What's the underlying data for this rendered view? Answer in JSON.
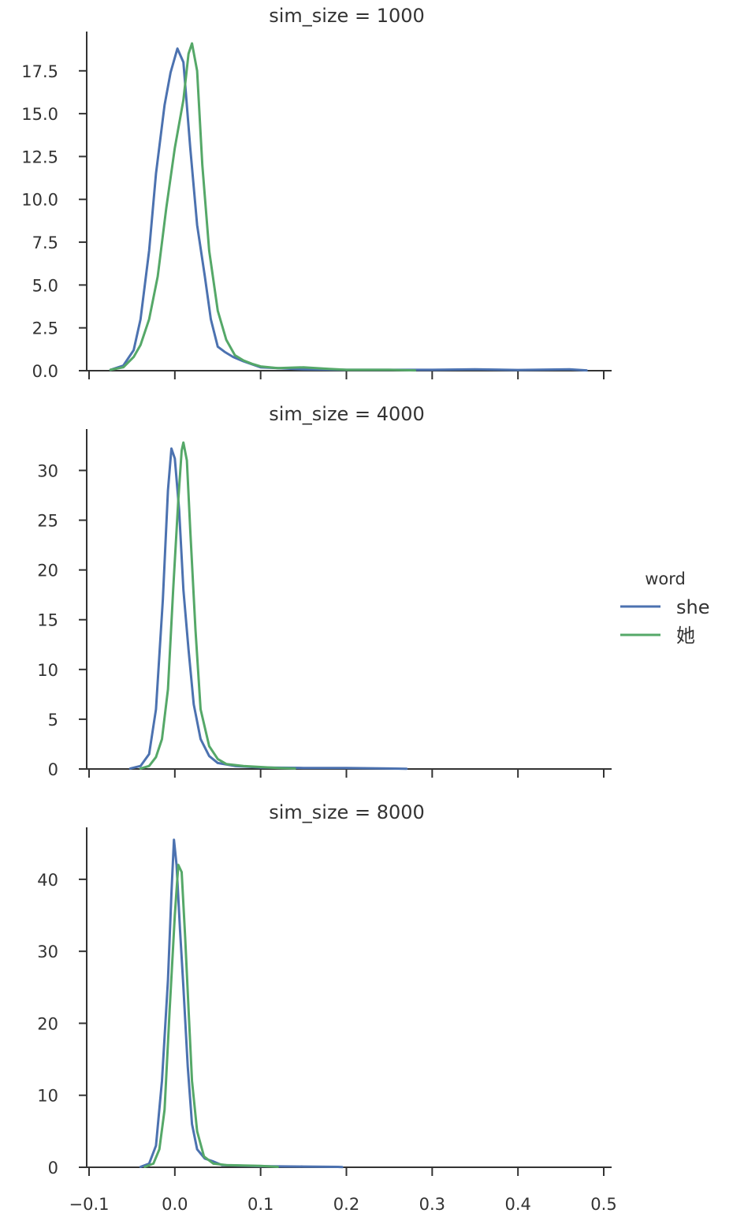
{
  "chart_data": {
    "type": "line",
    "x_ticks": [
      -0.1,
      0.0,
      0.1,
      0.2,
      0.3,
      0.4,
      0.5
    ],
    "x_tick_labels": [
      "−0.1",
      "0.0",
      "0.1",
      "0.2",
      "0.3",
      "0.4",
      "0.5"
    ],
    "xlim": [
      -0.1,
      0.5
    ],
    "legend": {
      "title": "word",
      "position": "right",
      "entries": [
        {
          "label": "she",
          "color": "#4c72b0"
        },
        {
          "label": "她",
          "color": "#55a868"
        }
      ]
    },
    "panels": [
      {
        "title": "sim_size = 1000",
        "ylim": [
          0,
          19.7
        ],
        "y_ticks": [
          0,
          2.5,
          5,
          7.5,
          10,
          12.5,
          15,
          17.5
        ],
        "y_tick_labels": [
          "0.0",
          "2.5",
          "5.0",
          "7.5",
          "10.0",
          "12.5",
          "15.0",
          "17.5"
        ],
        "series": [
          {
            "name": "she",
            "color": "#4c72b0",
            "points": [
              [
                -0.075,
                0.05
              ],
              [
                -0.06,
                0.3
              ],
              [
                -0.048,
                1.2
              ],
              [
                -0.04,
                3
              ],
              [
                -0.03,
                7
              ],
              [
                -0.022,
                11.5
              ],
              [
                -0.012,
                15.5
              ],
              [
                -0.005,
                17.4
              ],
              [
                0.003,
                18.8
              ],
              [
                0.01,
                18
              ],
              [
                0.018,
                13
              ],
              [
                0.026,
                8.5
              ],
              [
                0.035,
                5.5
              ],
              [
                0.042,
                3
              ],
              [
                0.05,
                1.4
              ],
              [
                0.058,
                1.1
              ],
              [
                0.068,
                0.8
              ],
              [
                0.08,
                0.55
              ],
              [
                0.1,
                0.2
              ],
              [
                0.12,
                0.15
              ],
              [
                0.15,
                0.08
              ],
              [
                0.2,
                0.05
              ],
              [
                0.3,
                0.05
              ],
              [
                0.35,
                0.08
              ],
              [
                0.4,
                0.04
              ],
              [
                0.46,
                0.08
              ],
              [
                0.48,
                0.02
              ]
            ]
          },
          {
            "name": "她",
            "color": "#55a868",
            "points": [
              [
                -0.075,
                0.05
              ],
              [
                -0.06,
                0.2
              ],
              [
                -0.048,
                0.8
              ],
              [
                -0.04,
                1.5
              ],
              [
                -0.03,
                3
              ],
              [
                -0.02,
                5.5
              ],
              [
                -0.01,
                9.5
              ],
              [
                0.0,
                13
              ],
              [
                0.01,
                15.8
              ],
              [
                0.016,
                18.5
              ],
              [
                0.02,
                19.1
              ],
              [
                0.026,
                17.5
              ],
              [
                0.032,
                12
              ],
              [
                0.04,
                7
              ],
              [
                0.05,
                3.5
              ],
              [
                0.06,
                1.8
              ],
              [
                0.07,
                0.9
              ],
              [
                0.08,
                0.6
              ],
              [
                0.09,
                0.4
              ],
              [
                0.1,
                0.25
              ],
              [
                0.12,
                0.15
              ],
              [
                0.15,
                0.2
              ],
              [
                0.18,
                0.1
              ],
              [
                0.2,
                0.05
              ],
              [
                0.25,
                0.05
              ],
              [
                0.28,
                0.02
              ]
            ]
          }
        ]
      },
      {
        "title": "sim_size = 4000",
        "ylim": [
          0,
          34
        ],
        "y_ticks": [
          0,
          5,
          10,
          15,
          20,
          25,
          30
        ],
        "y_tick_labels": [
          "0",
          "5",
          "10",
          "15",
          "20",
          "25",
          "30"
        ],
        "series": [
          {
            "name": "she",
            "color": "#4c72b0",
            "points": [
              [
                -0.052,
                0.05
              ],
              [
                -0.04,
                0.3
              ],
              [
                -0.03,
                1.5
              ],
              [
                -0.022,
                6
              ],
              [
                -0.014,
                17
              ],
              [
                -0.008,
                28
              ],
              [
                -0.004,
                32.2
              ],
              [
                0.0,
                31.2
              ],
              [
                0.005,
                26
              ],
              [
                0.01,
                18
              ],
              [
                0.016,
                12
              ],
              [
                0.022,
                6.5
              ],
              [
                0.03,
                3
              ],
              [
                0.04,
                1.3
              ],
              [
                0.05,
                0.6
              ],
              [
                0.07,
                0.3
              ],
              [
                0.1,
                0.15
              ],
              [
                0.15,
                0.1
              ],
              [
                0.2,
                0.1
              ],
              [
                0.25,
                0.05
              ],
              [
                0.27,
                0.02
              ]
            ]
          },
          {
            "name": "她",
            "color": "#55a868",
            "points": [
              [
                -0.04,
                0.05
              ],
              [
                -0.03,
                0.3
              ],
              [
                -0.022,
                1.2
              ],
              [
                -0.015,
                3
              ],
              [
                -0.008,
                8
              ],
              [
                -0.002,
                18
              ],
              [
                0.004,
                27
              ],
              [
                0.008,
                32
              ],
              [
                0.01,
                32.8
              ],
              [
                0.014,
                31
              ],
              [
                0.018,
                24
              ],
              [
                0.024,
                14
              ],
              [
                0.03,
                6
              ],
              [
                0.04,
                2.3
              ],
              [
                0.05,
                1
              ],
              [
                0.06,
                0.5
              ],
              [
                0.08,
                0.3
              ],
              [
                0.1,
                0.2
              ],
              [
                0.12,
                0.1
              ],
              [
                0.14,
                0.05
              ]
            ]
          }
        ]
      },
      {
        "title": "sim_size = 8000",
        "ylim": [
          0,
          47
        ],
        "y_ticks": [
          0,
          10,
          20,
          30,
          40
        ],
        "y_tick_labels": [
          "0",
          "10",
          "20",
          "30",
          "40"
        ],
        "series": [
          {
            "name": "she",
            "color": "#4c72b0",
            "points": [
              [
                -0.04,
                0.05
              ],
              [
                -0.03,
                0.5
              ],
              [
                -0.022,
                3
              ],
              [
                -0.015,
                12
              ],
              [
                -0.008,
                26
              ],
              [
                -0.004,
                38
              ],
              [
                -0.001,
                45.5
              ],
              [
                0.002,
                42
              ],
              [
                0.006,
                33
              ],
              [
                0.01,
                25
              ],
              [
                0.015,
                14
              ],
              [
                0.02,
                6
              ],
              [
                0.026,
                2.5
              ],
              [
                0.035,
                1.2
              ],
              [
                0.045,
                0.8
              ],
              [
                0.055,
                0.3
              ],
              [
                0.1,
                0.15
              ],
              [
                0.15,
                0.1
              ],
              [
                0.19,
                0.05
              ],
              [
                0.195,
                0.02
              ]
            ]
          },
          {
            "name": "她",
            "color": "#55a868",
            "points": [
              [
                -0.035,
                0.05
              ],
              [
                -0.025,
                0.5
              ],
              [
                -0.018,
                2.5
              ],
              [
                -0.012,
                8
              ],
              [
                -0.006,
                22
              ],
              [
                0.0,
                35
              ],
              [
                0.004,
                42
              ],
              [
                0.008,
                41
              ],
              [
                0.012,
                32
              ],
              [
                0.016,
                22
              ],
              [
                0.02,
                12
              ],
              [
                0.026,
                5
              ],
              [
                0.034,
                1.5
              ],
              [
                0.045,
                0.5
              ],
              [
                0.06,
                0.3
              ],
              [
                0.1,
                0.2
              ],
              [
                0.12,
                0.05
              ]
            ]
          }
        ]
      }
    ]
  }
}
